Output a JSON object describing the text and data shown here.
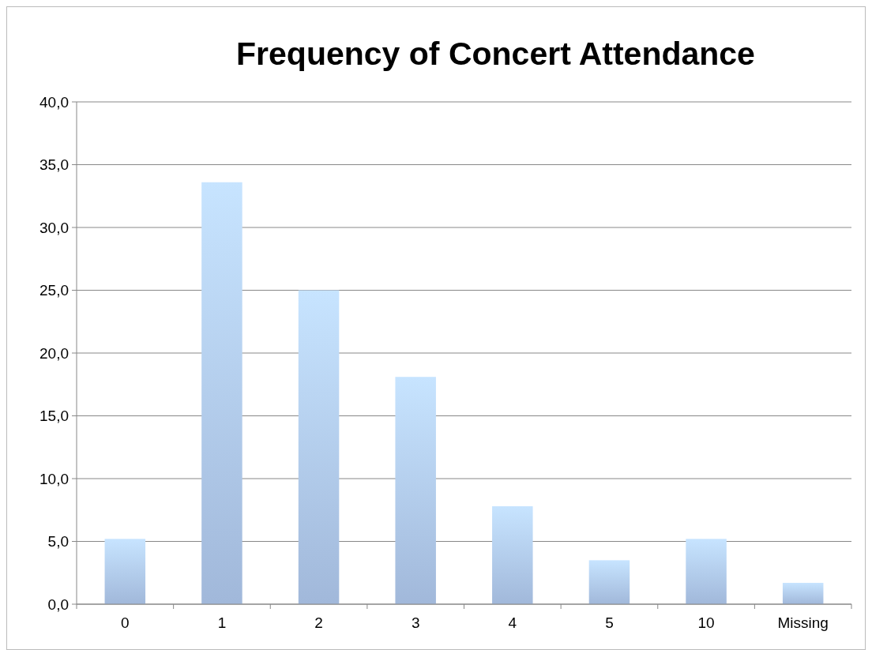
{
  "chart_data": {
    "type": "bar",
    "title": "Frequency of Concert Attendance",
    "categories": [
      "0",
      "1",
      "2",
      "3",
      "4",
      "5",
      "10",
      "Missing"
    ],
    "values": [
      5.2,
      33.6,
      25.0,
      18.1,
      7.8,
      3.5,
      5.2,
      1.7
    ],
    "color": "#b3cdf3",
    "ylim": [
      0,
      40
    ],
    "yticks": [
      {
        "value": 0,
        "label": "0,0"
      },
      {
        "value": 5,
        "label": "5,0"
      },
      {
        "value": 10,
        "label": "10,0"
      },
      {
        "value": 15,
        "label": "15,0"
      },
      {
        "value": 20,
        "label": "20,0"
      },
      {
        "value": 25,
        "label": "25,0"
      },
      {
        "value": 30,
        "label": "30,0"
      },
      {
        "value": 35,
        "label": "35,0"
      },
      {
        "value": 40,
        "label": "40,0"
      }
    ],
    "grid": "y"
  }
}
